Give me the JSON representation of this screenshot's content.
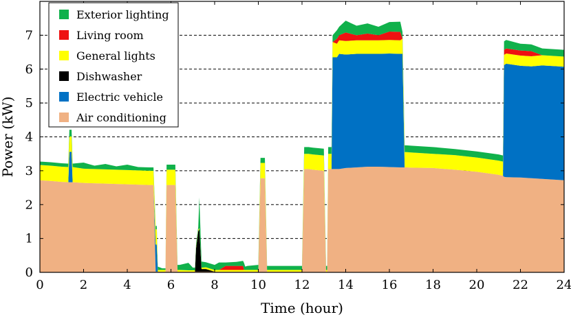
{
  "chart_data": {
    "type": "area",
    "stacked": true,
    "title": "",
    "xlabel": "Time (hour)",
    "ylabel": "Power (kW)",
    "xlim": [
      0,
      24
    ],
    "ylim": [
      0,
      8
    ],
    "xticks": [
      0,
      2,
      4,
      6,
      8,
      10,
      12,
      14,
      16,
      18,
      20,
      22,
      24
    ],
    "yticks": [
      0,
      1,
      2,
      3,
      4,
      5,
      6,
      7
    ],
    "grid": "horizontal-dashed",
    "legend_position": "top-left",
    "x": [
      0,
      0.5,
      1,
      1.3,
      1.35,
      1.45,
      1.5,
      2,
      2.5,
      3,
      3.5,
      4,
      4.5,
      5,
      5.2,
      5.3,
      5.35,
      5.4,
      5.6,
      5.75,
      5.8,
      6,
      6.2,
      6.3,
      6.4,
      6.8,
      7,
      7.1,
      7.15,
      7.25,
      7.3,
      7.4,
      7.6,
      8,
      8.2,
      8.5,
      9,
      9.3,
      9.35,
      9.4,
      9.5,
      10,
      10.1,
      10.15,
      10.3,
      10.4,
      10.5,
      11,
      11.5,
      12,
      12.1,
      12.2,
      12.3,
      12.5,
      13,
      13.1,
      13.15,
      13.2,
      13.35,
      13.4,
      13.6,
      13.7,
      14,
      14.5,
      15,
      15.5,
      16,
      16.5,
      16.6,
      16.7,
      16.8,
      17,
      18,
      19,
      20,
      21,
      21.2,
      21.25,
      21.35,
      22,
      22.5,
      23,
      23.5,
      24
    ],
    "series": [
      {
        "name": "Air conditioning",
        "color": "#f0b183",
        "values": [
          2.72,
          2.7,
          2.67,
          2.66,
          2.66,
          2.66,
          2.66,
          2.64,
          2.63,
          2.62,
          2.61,
          2.6,
          2.59,
          2.58,
          2.58,
          0.02,
          0.02,
          0.02,
          0.02,
          0.02,
          2.58,
          2.58,
          2.58,
          0.02,
          0.02,
          0.02,
          0.02,
          0.02,
          0.02,
          0.02,
          0.02,
          0.02,
          0.02,
          0.02,
          0.02,
          0.02,
          0.02,
          0.02,
          0.02,
          0.02,
          0.02,
          0.02,
          2.78,
          2.78,
          2.78,
          0.02,
          0.02,
          0.02,
          0.02,
          0.02,
          3.05,
          3.05,
          3.05,
          3.03,
          3.0,
          0.02,
          0.02,
          3.05,
          3.05,
          3.05,
          3.05,
          3.05,
          3.08,
          3.1,
          3.12,
          3.12,
          3.11,
          3.1,
          3.1,
          3.1,
          3.1,
          3.09,
          3.08,
          3.03,
          2.97,
          2.88,
          2.85,
          2.82,
          2.81,
          2.8,
          2.78,
          2.76,
          2.74,
          2.72
        ]
      },
      {
        "name": "Electric vehicle",
        "color": "#0071c4",
        "values": [
          0,
          0,
          0,
          0,
          0.9,
          0.9,
          0,
          0,
          0,
          0,
          0,
          0,
          0,
          0,
          0,
          0.8,
          0.8,
          0,
          0,
          0,
          0,
          0,
          0,
          0,
          0,
          0,
          0,
          0,
          0,
          0,
          0,
          0,
          0,
          0,
          0,
          0,
          0,
          0,
          0,
          0,
          0,
          0,
          0,
          0,
          0,
          0,
          0,
          0,
          0,
          0,
          0,
          0,
          0,
          0,
          0,
          0,
          0,
          0,
          0,
          3.3,
          3.3,
          3.4,
          3.35,
          3.35,
          3.33,
          3.33,
          3.35,
          3.35,
          3.35,
          0,
          0,
          0,
          0,
          0,
          0,
          0,
          0,
          3.3,
          3.35,
          3.3,
          3.3,
          3.35,
          3.35,
          3.35
        ]
      },
      {
        "name": "Dishwasher",
        "color": "#000000",
        "values": [
          0,
          0,
          0,
          0,
          0,
          0,
          0,
          0,
          0,
          0,
          0,
          0,
          0,
          0,
          0,
          0,
          0,
          0,
          0,
          0,
          0,
          0,
          0,
          0,
          0,
          0,
          0,
          0,
          0.7,
          1.2,
          1.25,
          0.08,
          0.08,
          0,
          0,
          0,
          0,
          0,
          0,
          0,
          0,
          0,
          0,
          0,
          0,
          0,
          0,
          0,
          0,
          0,
          0,
          0,
          0,
          0,
          0,
          0,
          0,
          0,
          0,
          0,
          0,
          0,
          0,
          0,
          0,
          0,
          0,
          0,
          0,
          0,
          0,
          0,
          0,
          0,
          0,
          0,
          0,
          0,
          0,
          0,
          0,
          0,
          0,
          0
        ]
      },
      {
        "name": "General lights",
        "color": "#ffff00",
        "values": [
          0.45,
          0.45,
          0.45,
          0.45,
          0.45,
          0.45,
          0.45,
          0.42,
          0.42,
          0.42,
          0.42,
          0.42,
          0.42,
          0.42,
          0.42,
          0.45,
          0.45,
          0.05,
          0.05,
          0.05,
          0.45,
          0.45,
          0.45,
          0.05,
          0.05,
          0.04,
          0.04,
          0.04,
          0.04,
          0.04,
          0.04,
          0.04,
          0.05,
          0.05,
          0.05,
          0.05,
          0.05,
          0.05,
          0.05,
          0.05,
          0.05,
          0.05,
          0.45,
          0.45,
          0.45,
          0.05,
          0.05,
          0.05,
          0.05,
          0.05,
          0.45,
          0.45,
          0.45,
          0.45,
          0.45,
          0.05,
          0.05,
          0.45,
          0.45,
          0.45,
          0.4,
          0.4,
          0.4,
          0.4,
          0.4,
          0.4,
          0.4,
          0.4,
          0.45,
          0.45,
          0.45,
          0.45,
          0.42,
          0.43,
          0.42,
          0.42,
          0.42,
          0.3,
          0.3,
          0.3,
          0.3,
          0.3,
          0.3,
          0.3
        ]
      },
      {
        "name": "Living room",
        "color": "#ee1111",
        "values": [
          0,
          0,
          0,
          0,
          0,
          0,
          0,
          0,
          0,
          0,
          0,
          0,
          0,
          0,
          0,
          0,
          0,
          0,
          0,
          0,
          0,
          0,
          0,
          0,
          0,
          0,
          0,
          0,
          0,
          0,
          0,
          0,
          0,
          0,
          0,
          0.12,
          0.12,
          0.12,
          0,
          0,
          0,
          0,
          0,
          0,
          0,
          0,
          0,
          0,
          0,
          0,
          0,
          0,
          0,
          0,
          0,
          0,
          0,
          0,
          0,
          0,
          0.15,
          0.15,
          0.25,
          0.15,
          0.2,
          0.15,
          0.25,
          0.25,
          0,
          0,
          0,
          0,
          0,
          0,
          0,
          0,
          0,
          0.15,
          0.15,
          0.15,
          0.15,
          0,
          0,
          0
        ]
      },
      {
        "name": "Exterior lighting",
        "color": "#10b14b",
        "values": [
          0.1,
          0.1,
          0.1,
          0.1,
          0.2,
          0.2,
          0.1,
          0.18,
          0.1,
          0.16,
          0.1,
          0.16,
          0.1,
          0.1,
          0.1,
          0.1,
          0.1,
          0.1,
          0.05,
          0.05,
          0.15,
          0.15,
          0.15,
          0.15,
          0.15,
          0.22,
          0.08,
          0.08,
          0.08,
          0.08,
          0.9,
          0.18,
          0.15,
          0.15,
          0.22,
          0.1,
          0.12,
          0.15,
          0.2,
          0.1,
          0.12,
          0.15,
          0.15,
          0.15,
          0.15,
          0.12,
          0.12,
          0.12,
          0.12,
          0.12,
          0.2,
          0.2,
          0.2,
          0.2,
          0.2,
          0.12,
          0.12,
          0.2,
          0.2,
          0.2,
          0.25,
          0.25,
          0.35,
          0.28,
          0.3,
          0.25,
          0.28,
          0.3,
          0.2,
          0.2,
          0.2,
          0.2,
          0.2,
          0.18,
          0.18,
          0.18,
          0.18,
          0.25,
          0.25,
          0.2,
          0.2,
          0.2,
          0.2,
          0.2
        ]
      }
    ],
    "legend_order": [
      "Exterior lighting",
      "Living room",
      "General lights",
      "Dishwasher",
      "Electric vehicle",
      "Air conditioning"
    ]
  }
}
